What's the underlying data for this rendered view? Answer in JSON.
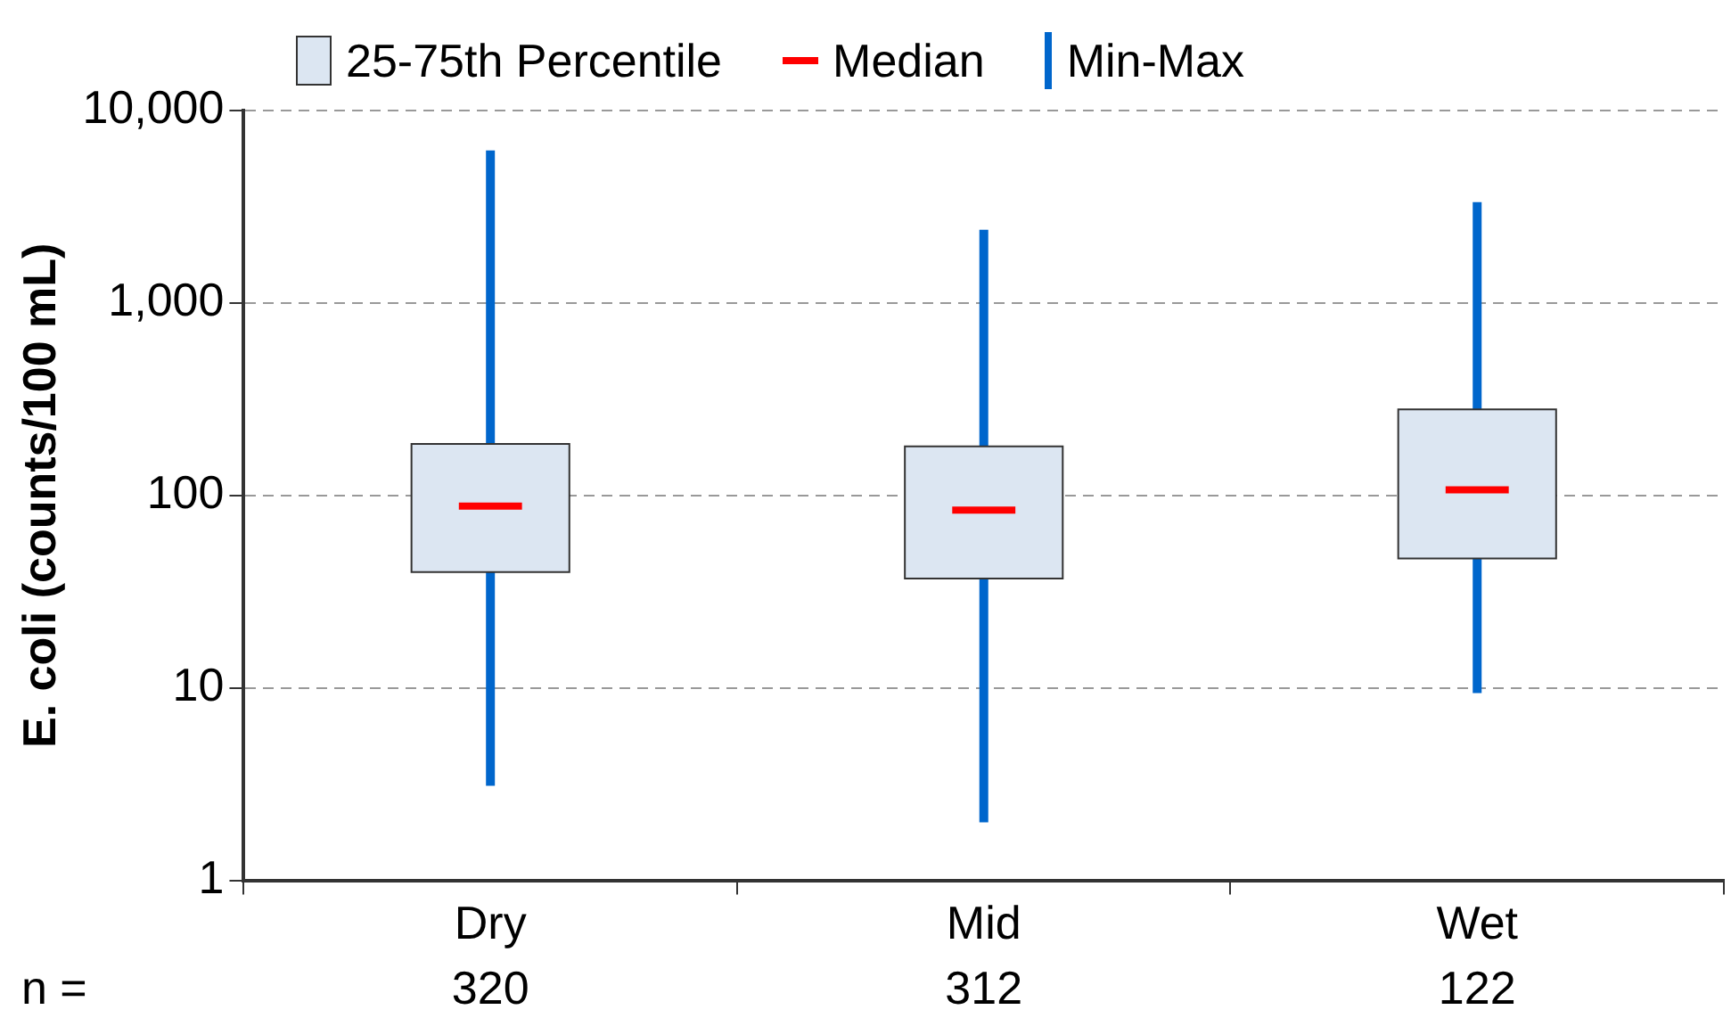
{
  "chart_data": {
    "type": "box",
    "ylabel": "E. coli (counts/100 mL)",
    "categories": [
      "Dry",
      "Mid",
      "Wet"
    ],
    "series": [
      {
        "color": "#dce6f2",
        "boxes": [
          {
            "low": 3.1,
            "q1": 40,
            "median": 88,
            "q3": 185,
            "high": 6200
          },
          {
            "low": 2,
            "q1": 37,
            "median": 84,
            "q3": 180,
            "high": 2400
          },
          {
            "low": 9.4,
            "q1": 47,
            "median": 107,
            "q3": 280,
            "high": 3340
          }
        ]
      }
    ],
    "log": "y",
    "ylim": [
      1,
      10000
    ],
    "yticks": [
      1,
      10,
      100,
      {
        "value": 1000,
        "label": "1,000"
      },
      {
        "value": 10000,
        "label": "10,000"
      }
    ],
    "grid": "y",
    "annotations": [
      "25-75th Percentile",
      "Median",
      "Min-Max",
      "n =",
      "320",
      "312",
      "122"
    ]
  }
}
